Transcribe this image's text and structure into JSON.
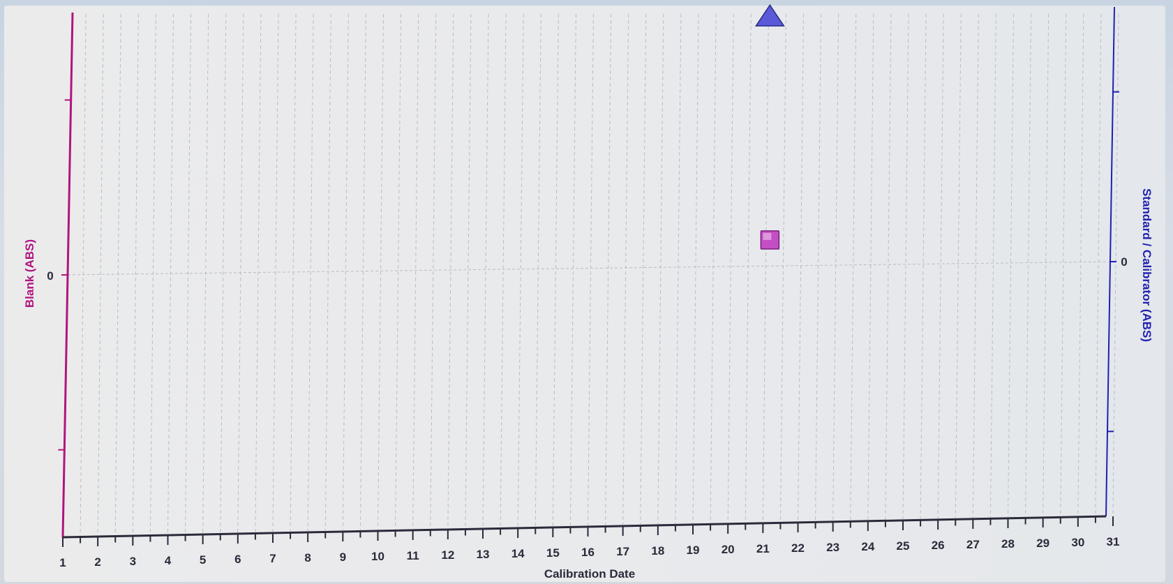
{
  "chart_data": {
    "type": "scatter",
    "title": "",
    "xlabel": "Calibration Date",
    "ylabel_left": "Blank (ABS)",
    "ylabel_right": "Standard / Calibrator (ABS)",
    "x_ticks": [
      "1",
      "2",
      "3",
      "4",
      "5",
      "6",
      "7",
      "8",
      "9",
      "10",
      "11",
      "12",
      "13",
      "14",
      "15",
      "16",
      "17",
      "18",
      "19",
      "20",
      "21",
      "22",
      "23",
      "24",
      "25",
      "26",
      "27",
      "28",
      "29",
      "30",
      "31"
    ],
    "xlim": [
      1,
      31
    ],
    "y_left_ticks": [
      "0"
    ],
    "y_right_ticks": [
      "0"
    ],
    "ylim_left": [
      -1.5,
      1.5
    ],
    "ylim_right": [
      -1.5,
      1.5
    ],
    "grid": true,
    "colors": {
      "left_axis": "#b0147e",
      "right_axis": "#2020b0",
      "blank_marker": "#c44fc4",
      "standard_marker": "#5a5ad8",
      "grid": "#b9bcc2"
    },
    "series": [
      {
        "name": "",
        "axis": "left",
        "marker": "square",
        "points": [
          {
            "x": 21.2,
            "y": 0.2
          }
        ]
      },
      {
        "name": "",
        "axis": "right",
        "marker": "triangle",
        "points": [
          {
            "x": 21.2,
            "y": 1.45
          }
        ]
      }
    ]
  }
}
